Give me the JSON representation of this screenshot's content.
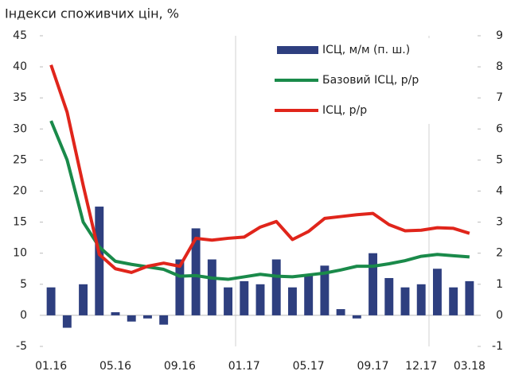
{
  "chart_data": {
    "type": "bar",
    "title": "Індекси споживчих цін, %",
    "categories": [
      "01.16",
      null,
      null,
      null,
      "05.16",
      null,
      null,
      null,
      "09.16",
      null,
      null,
      null,
      "01.17",
      null,
      null,
      null,
      "05.17",
      null,
      null,
      null,
      "09.17",
      null,
      null,
      "12.17",
      null,
      null,
      "03.18"
    ],
    "series": [
      {
        "name": "ІСЦ, м/м (п. ш.)",
        "type": "bar",
        "axis": "y2",
        "color": "#2e3f7f",
        "values": [
          0.9,
          -0.4,
          1.0,
          3.5,
          0.1,
          -0.2,
          -0.1,
          -0.3,
          1.8,
          2.8,
          1.8,
          0.9,
          1.1,
          1.0,
          1.8,
          0.9,
          1.3,
          1.6,
          0.2,
          -0.1,
          2.0,
          1.2,
          0.9,
          1.0,
          1.5,
          0.9,
          1.1
        ]
      },
      {
        "name": "Базовий ІСЦ, р/р",
        "type": "line",
        "color": "#1a8a4a",
        "values": [
          31.3,
          25.0,
          15.0,
          11.0,
          8.7,
          8.2,
          7.8,
          7.4,
          6.3,
          6.4,
          6.0,
          5.8,
          6.2,
          6.6,
          6.3,
          6.2,
          6.5,
          6.8,
          7.3,
          7.9,
          7.9,
          8.3,
          8.8,
          9.5,
          9.8,
          9.6,
          9.4
        ]
      },
      {
        "name": "ІСЦ, р/р",
        "type": "line",
        "color": "#e0251b",
        "values": [
          40.3,
          32.7,
          20.9,
          9.8,
          7.5,
          6.9,
          7.9,
          8.4,
          7.9,
          12.4,
          12.1,
          12.4,
          12.6,
          14.2,
          15.1,
          12.2,
          13.5,
          15.6,
          15.9,
          16.2,
          16.4,
          14.6,
          13.6,
          13.7,
          14.1,
          14.0,
          13.2
        ]
      }
    ],
    "ylim": [
      -5,
      45
    ],
    "yticks": [
      -5,
      0,
      5,
      10,
      15,
      20,
      25,
      30,
      35,
      40,
      45
    ],
    "y2lim": [
      -1,
      9
    ],
    "y2ticks": [
      -1,
      0,
      1,
      2,
      3,
      4,
      5,
      6,
      7,
      8,
      9
    ],
    "legend": "upper right"
  }
}
